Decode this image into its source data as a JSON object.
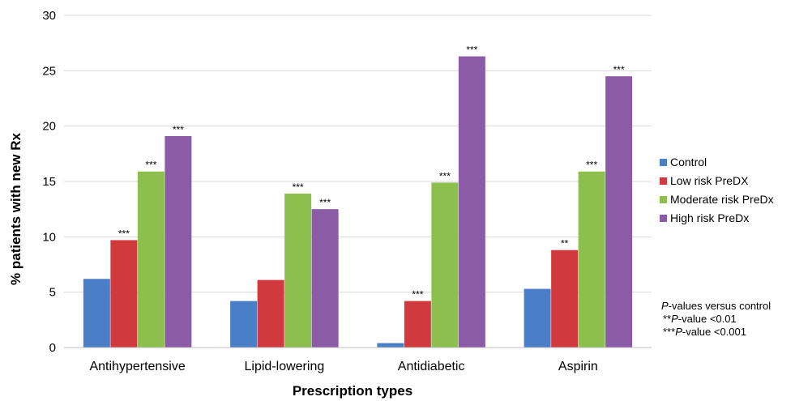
{
  "chart_data": {
    "type": "bar",
    "title": "",
    "xlabel": "Prescription types",
    "ylabel": "% patients with new Rx",
    "ylim": [
      0,
      30
    ],
    "yticks": [
      0,
      5,
      10,
      15,
      20,
      25,
      30
    ],
    "grid": "horizontal",
    "legend_position": "right",
    "categories": [
      "Antihypertensive",
      "Lipid-lowering",
      "Antidiabetic",
      "Aspirin"
    ],
    "series": [
      {
        "name": "Control",
        "color": "#4a7ec7",
        "values": [
          6.2,
          4.2,
          0.4,
          5.3
        ],
        "sig": [
          "",
          "",
          "",
          ""
        ]
      },
      {
        "name": "Low risk PreDX",
        "color": "#d0393e",
        "values": [
          9.7,
          6.1,
          4.2,
          8.8
        ],
        "sig": [
          "***",
          "",
          "***",
          "**"
        ]
      },
      {
        "name": "Moderate risk PreDx",
        "color": "#8dbf4f",
        "values": [
          15.9,
          13.9,
          14.9,
          15.9
        ],
        "sig": [
          "***",
          "***",
          "***",
          "***"
        ]
      },
      {
        "name": "High risk PreDx",
        "color": "#8b5ba8",
        "values": [
          19.1,
          12.5,
          26.3,
          24.5
        ],
        "sig": [
          "***",
          "***",
          "***",
          "***"
        ]
      }
    ],
    "annotation": {
      "line1_italic": "P",
      "line1_rest": "-values versus control",
      "line2_prefix": "**",
      "line2_italic": "P",
      "line2_rest": "-value <0.01",
      "line3_prefix": "***",
      "line3_italic": "P",
      "line3_rest": "-value <0.001"
    }
  }
}
